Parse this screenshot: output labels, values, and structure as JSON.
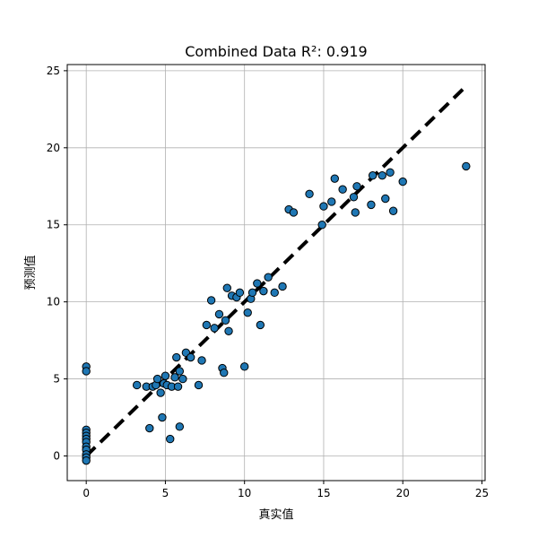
{
  "chart_data": {
    "type": "scatter",
    "title": "Combined Data R²: 0.919",
    "xlabel": "真实值",
    "ylabel": "预测值",
    "xlim": [
      -1.2,
      25.2
    ],
    "ylim": [
      -1.6,
      25.4
    ],
    "xticks": [
      0,
      5,
      10,
      15,
      20,
      25
    ],
    "yticks": [
      0,
      5,
      10,
      15,
      20,
      25
    ],
    "grid": true,
    "colors": {
      "point_fill": "#1f77b4",
      "point_edge": "#000000",
      "line": "#000000",
      "grid": "#b0b0b0"
    },
    "reference_line": {
      "x": [
        0,
        24
      ],
      "y": [
        0,
        24
      ],
      "style": "dashed"
    },
    "points": [
      {
        "x": 0,
        "y": 5.8
      },
      {
        "x": 0,
        "y": 5.5
      },
      {
        "x": 0,
        "y": 1.7
      },
      {
        "x": 0,
        "y": 1.5
      },
      {
        "x": 0,
        "y": 1.3
      },
      {
        "x": 0,
        "y": 1.1
      },
      {
        "x": 0,
        "y": 0.9
      },
      {
        "x": 0,
        "y": 0.6
      },
      {
        "x": 0,
        "y": 0.4
      },
      {
        "x": 0,
        "y": 0.1
      },
      {
        "x": 0,
        "y": -0.1
      },
      {
        "x": 0,
        "y": -0.3
      },
      {
        "x": 3.2,
        "y": 4.6
      },
      {
        "x": 3.8,
        "y": 4.5
      },
      {
        "x": 4.0,
        "y": 1.8
      },
      {
        "x": 4.2,
        "y": 4.5
      },
      {
        "x": 4.4,
        "y": 4.6
      },
      {
        "x": 4.5,
        "y": 5.0
      },
      {
        "x": 4.7,
        "y": 4.1
      },
      {
        "x": 4.8,
        "y": 2.5
      },
      {
        "x": 4.9,
        "y": 4.7
      },
      {
        "x": 5.0,
        "y": 5.2
      },
      {
        "x": 5.1,
        "y": 4.6
      },
      {
        "x": 5.3,
        "y": 1.1
      },
      {
        "x": 5.4,
        "y": 4.5
      },
      {
        "x": 5.6,
        "y": 5.1
      },
      {
        "x": 5.7,
        "y": 6.4
      },
      {
        "x": 5.8,
        "y": 4.5
      },
      {
        "x": 5.9,
        "y": 1.9
      },
      {
        "x": 5.9,
        "y": 5.5
      },
      {
        "x": 6.1,
        "y": 5.0
      },
      {
        "x": 6.3,
        "y": 6.7
      },
      {
        "x": 6.6,
        "y": 6.4
      },
      {
        "x": 7.1,
        "y": 4.6
      },
      {
        "x": 7.3,
        "y": 6.2
      },
      {
        "x": 7.6,
        "y": 8.5
      },
      {
        "x": 7.9,
        "y": 10.1
      },
      {
        "x": 8.1,
        "y": 8.3
      },
      {
        "x": 8.4,
        "y": 9.2
      },
      {
        "x": 8.6,
        "y": 5.7
      },
      {
        "x": 8.7,
        "y": 5.4
      },
      {
        "x": 8.8,
        "y": 8.8
      },
      {
        "x": 8.9,
        "y": 10.9
      },
      {
        "x": 9.0,
        "y": 8.1
      },
      {
        "x": 9.2,
        "y": 10.4
      },
      {
        "x": 9.5,
        "y": 10.3
      },
      {
        "x": 9.7,
        "y": 10.6
      },
      {
        "x": 10.0,
        "y": 5.8
      },
      {
        "x": 10.2,
        "y": 9.3
      },
      {
        "x": 10.4,
        "y": 10.2
      },
      {
        "x": 10.5,
        "y": 10.6
      },
      {
        "x": 10.8,
        "y": 11.2
      },
      {
        "x": 11.0,
        "y": 8.5
      },
      {
        "x": 11.2,
        "y": 10.7
      },
      {
        "x": 11.5,
        "y": 11.6
      },
      {
        "x": 11.9,
        "y": 10.6
      },
      {
        "x": 12.4,
        "y": 11.0
      },
      {
        "x": 12.8,
        "y": 16.0
      },
      {
        "x": 13.1,
        "y": 15.8
      },
      {
        "x": 14.1,
        "y": 17.0
      },
      {
        "x": 14.9,
        "y": 15.0
      },
      {
        "x": 15.0,
        "y": 16.2
      },
      {
        "x": 15.5,
        "y": 16.5
      },
      {
        "x": 15.7,
        "y": 18.0
      },
      {
        "x": 16.2,
        "y": 17.3
      },
      {
        "x": 16.9,
        "y": 16.8
      },
      {
        "x": 17.0,
        "y": 15.8
      },
      {
        "x": 17.1,
        "y": 17.5
      },
      {
        "x": 18.0,
        "y": 16.3
      },
      {
        "x": 18.1,
        "y": 18.2
      },
      {
        "x": 18.7,
        "y": 18.2
      },
      {
        "x": 18.9,
        "y": 16.7
      },
      {
        "x": 19.2,
        "y": 18.4
      },
      {
        "x": 19.4,
        "y": 15.9
      },
      {
        "x": 20.0,
        "y": 17.8
      },
      {
        "x": 24.0,
        "y": 18.8
      }
    ]
  }
}
